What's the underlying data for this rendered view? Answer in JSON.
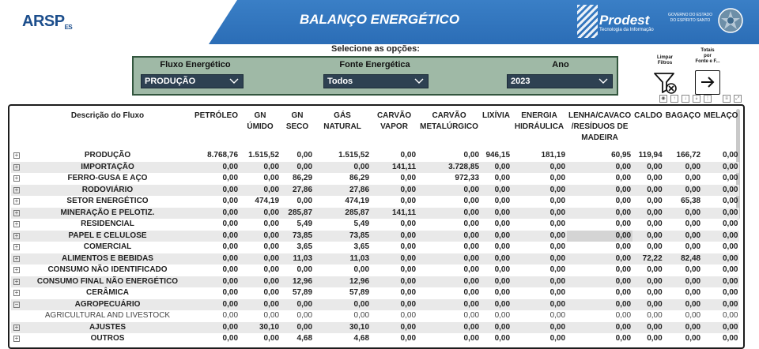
{
  "header": {
    "logo_text": "ARSP",
    "logo_suffix": "ES",
    "title": "BALANÇO ENERGÉTICO",
    "prodest_name": "Prodest",
    "prodest_sub": "Tecnologia da Informação",
    "gov_text": "GOVERNO DO ESTADO DO ESPÍRITO SANTO",
    "brand_color": "#2b6db6"
  },
  "filters": {
    "prompt": "Selecione as opções:",
    "fluxo_label": "Fluxo Energético",
    "fluxo_value": "PRODUÇÃO",
    "fonte_label": "Fonte Energética",
    "fonte_value": "Todos",
    "ano_label": "Ano",
    "ano_value": "2023",
    "panel_color": "#9fb9a6"
  },
  "controls": {
    "clear_label_1": "Limpar",
    "clear_label_2": "Filtros",
    "totals_label_1": "Totais",
    "totals_label_2": "por",
    "totals_label_3": "Fonte e F...",
    "clear_icon": "filter-clear-icon",
    "go_icon": "arrow-right-icon"
  },
  "table": {
    "columns": [
      [
        "Descrição do Fluxo"
      ],
      [
        "PETRÓLEO"
      ],
      [
        "GN",
        "ÚMIDO"
      ],
      [
        "GN",
        "SECO"
      ],
      [
        "GÁS",
        "NATURAL"
      ],
      [
        "CARVÃO",
        "VAPOR"
      ],
      [
        "CARVÃO",
        "METALÚRGICO"
      ],
      [
        "LIXÍVIA"
      ],
      [
        "ENERGIA",
        "HIDRÁULICA"
      ],
      [
        "LENHA/CAVACO",
        "/RESÍDUOS DE",
        "MADEIRA"
      ],
      [
        "CALDO"
      ],
      [
        "BAGAÇO"
      ],
      [
        "MELAÇO"
      ]
    ],
    "rows": [
      {
        "exp": "+",
        "cells": [
          "PRODUÇÃO",
          "8.768,76",
          "1.515,52",
          "0,00",
          "1.515,52",
          "0,00",
          "0,00",
          "946,15",
          "181,19",
          "60,95",
          "119,94",
          "166,72",
          "0,00"
        ]
      },
      {
        "exp": "+",
        "cells": [
          "IMPORTAÇÃO",
          "0,00",
          "0,00",
          "0,00",
          "0,00",
          "141,11",
          "3.728,85",
          "0,00",
          "0,00",
          "0,00",
          "0,00",
          "0,00",
          "0,00"
        ]
      },
      {
        "exp": "+",
        "cells": [
          "FERRO-GUSA E AÇO",
          "0,00",
          "0,00",
          "86,29",
          "86,29",
          "0,00",
          "972,33",
          "0,00",
          "0,00",
          "0,00",
          "0,00",
          "0,00",
          "0,00"
        ]
      },
      {
        "exp": "+",
        "cells": [
          "RODOVIÁRIO",
          "0,00",
          "0,00",
          "27,86",
          "27,86",
          "0,00",
          "0,00",
          "0,00",
          "0,00",
          "0,00",
          "0,00",
          "0,00",
          "0,00"
        ]
      },
      {
        "exp": "+",
        "cells": [
          "SETOR ENERGÉTICO",
          "0,00",
          "474,19",
          "0,00",
          "474,19",
          "0,00",
          "0,00",
          "0,00",
          "0,00",
          "0,00",
          "0,00",
          "65,38",
          "0,00"
        ]
      },
      {
        "exp": "+",
        "cells": [
          "MINERAÇÃO E PELOTIZ.",
          "0,00",
          "0,00",
          "285,87",
          "285,87",
          "141,11",
          "0,00",
          "0,00",
          "0,00",
          "0,00",
          "0,00",
          "0,00",
          "0,00"
        ]
      },
      {
        "exp": "+",
        "cells": [
          "RESIDENCIAL",
          "0,00",
          "0,00",
          "5,49",
          "5,49",
          "0,00",
          "0,00",
          "0,00",
          "0,00",
          "0,00",
          "0,00",
          "0,00",
          "0,00"
        ]
      },
      {
        "exp": "+",
        "cells": [
          "PAPEL E CELULOSE",
          "0,00",
          "0,00",
          "73,85",
          "73,85",
          "0,00",
          "0,00",
          "0,00",
          "0,00",
          "0,00",
          "0,00",
          "0,00",
          "0,00"
        ]
      },
      {
        "exp": "+",
        "cells": [
          "COMERCIAL",
          "0,00",
          "0,00",
          "3,65",
          "3,65",
          "0,00",
          "0,00",
          "0,00",
          "0,00",
          "0,00",
          "0,00",
          "0,00",
          "0,00"
        ]
      },
      {
        "exp": "+",
        "cells": [
          "ALIMENTOS E BEBIDAS",
          "0,00",
          "0,00",
          "11,03",
          "11,03",
          "0,00",
          "0,00",
          "0,00",
          "0,00",
          "0,00",
          "72,22",
          "82,48",
          "0,00"
        ]
      },
      {
        "exp": "+",
        "cells": [
          "CONSUMO NÃO IDENTIFICADO",
          "0,00",
          "0,00",
          "0,00",
          "0,00",
          "0,00",
          "0,00",
          "0,00",
          "0,00",
          "0,00",
          "0,00",
          "0,00",
          "0,00"
        ]
      },
      {
        "exp": "+",
        "cells": [
          "CONSUMO FINAL NÃO ENERGÉTICO",
          "0,00",
          "0,00",
          "12,96",
          "12,96",
          "0,00",
          "0,00",
          "0,00",
          "0,00",
          "0,00",
          "0,00",
          "0,00",
          "0,00"
        ]
      },
      {
        "exp": "+",
        "cells": [
          "CERÂMICA",
          "0,00",
          "0,00",
          "57,89",
          "57,89",
          "0,00",
          "0,00",
          "0,00",
          "0,00",
          "0,00",
          "0,00",
          "0,00",
          "0,00"
        ]
      },
      {
        "exp": "−",
        "cells": [
          "AGROPECUÁRIO",
          "0,00",
          "0,00",
          "0,00",
          "0,00",
          "0,00",
          "0,00",
          "0,00",
          "0,00",
          "0,00",
          "0,00",
          "0,00",
          "0,00"
        ]
      },
      {
        "exp": "",
        "sub": true,
        "cells": [
          "AGRICULTURAL AND LIVESTOCK",
          "0,00",
          "0,00",
          "0,00",
          "0,00",
          "0,00",
          "0,00",
          "0,00",
          "0,00",
          "0,00",
          "0,00",
          "0,00",
          "0,00"
        ]
      },
      {
        "exp": "+",
        "cells": [
          "AJUSTES",
          "0,00",
          "30,10",
          "0,00",
          "30,10",
          "0,00",
          "0,00",
          "0,00",
          "0,00",
          "0,00",
          "0,00",
          "0,00",
          "0,00"
        ]
      },
      {
        "exp": "+",
        "cells": [
          "OUTROS",
          "0,00",
          "0,00",
          "4,68",
          "4,68",
          "0,00",
          "0,00",
          "0,00",
          "0,00",
          "0,00",
          "0,00",
          "0,00",
          "0,00"
        ]
      }
    ]
  }
}
